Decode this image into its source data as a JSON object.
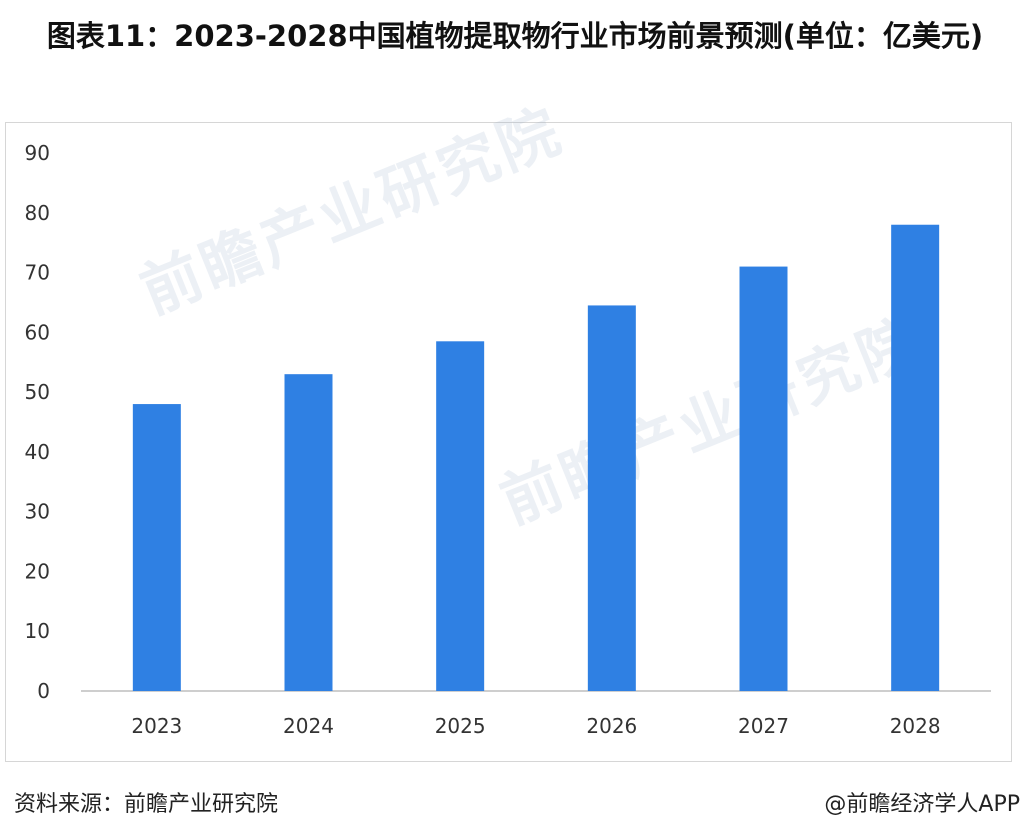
{
  "title": "图表11：2023-2028中国植物提取物行业市场前景预测(单位：亿美元)",
  "watermark": "前瞻产业研究院",
  "source": "资料来源：前瞻产业研究院",
  "credit": "@前瞻经济学人APP",
  "chart_data": {
    "type": "bar",
    "categories": [
      "2023",
      "2024",
      "2025",
      "2026",
      "2027",
      "2028"
    ],
    "values": [
      48,
      53,
      58.5,
      64.5,
      71,
      78
    ],
    "ylim": [
      0,
      90
    ],
    "yticks": [
      0,
      10,
      20,
      30,
      40,
      50,
      60,
      70,
      80,
      90
    ],
    "grid": false,
    "bar_color": "#2f80e3"
  }
}
